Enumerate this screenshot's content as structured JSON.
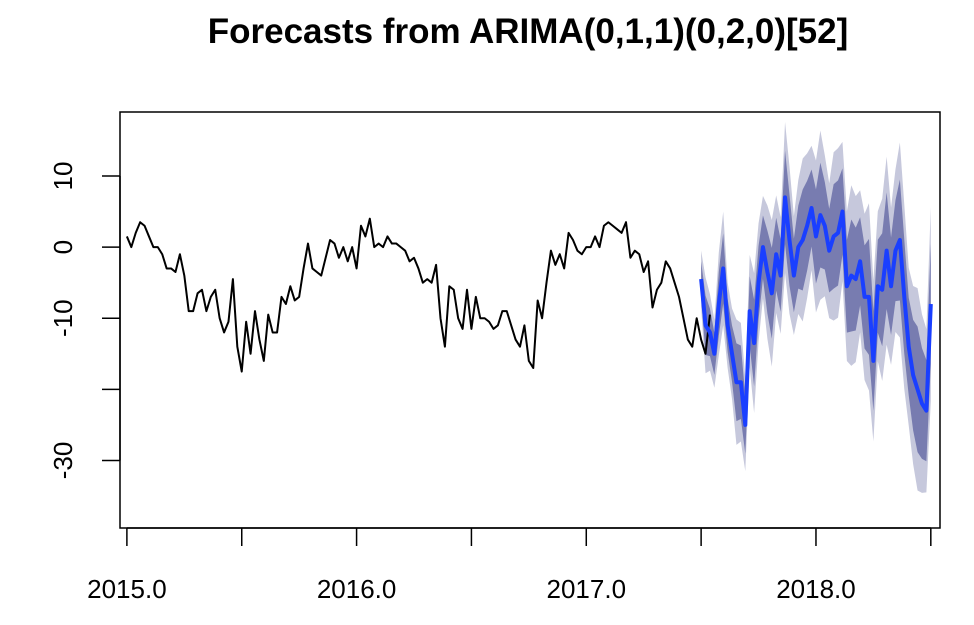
{
  "chart_data": {
    "type": "line",
    "title": "Forecasts from ARIMA(0,1,1)(0,2,0)[52]",
    "xlabel": "",
    "ylabel": "",
    "xlim": [
      2014.97,
      2018.54
    ],
    "ylim": [
      -39.5,
      19
    ],
    "x_ticks": [
      2015.0,
      2015.5,
      2016.0,
      2016.5,
      2017.0,
      2017.5,
      2018.0,
      2018.5
    ],
    "x_tick_labels": [
      "2015.0",
      "",
      "2016.0",
      "",
      "2017.0",
      "",
      "2018.0",
      ""
    ],
    "y_ticks": [
      -30,
      -20,
      -10,
      0,
      10
    ],
    "y_tick_labels": [
      "-30",
      "",
      "-10",
      "0",
      "10"
    ],
    "grid": false,
    "series": [
      {
        "role": "observed",
        "color": "#000000",
        "start": 2015.0,
        "step": 0.01923,
        "values": [
          1.5,
          0,
          2,
          3.5,
          3,
          1.5,
          0,
          0,
          -1,
          -3,
          -3,
          -3.5,
          -1,
          -4,
          -9,
          -9,
          -6.5,
          -6,
          -9,
          -7,
          -6,
          -10,
          -12,
          -10.5,
          -4.5,
          -14,
          -17.5,
          -10.5,
          -15,
          -9,
          -13,
          -16,
          -9.5,
          -12,
          -12,
          -7,
          -8,
          -5.5,
          -7.5,
          -7,
          -3,
          0.5,
          -3,
          -3.5,
          -4,
          -1.5,
          1,
          0.5,
          -1.5,
          0,
          -2,
          0,
          -3,
          3,
          1.5,
          4,
          0,
          0.5,
          0,
          1.5,
          0.5,
          0.5,
          0,
          -0.5,
          -2,
          -1.5,
          -3,
          -5,
          -4.5,
          -5,
          -2.5,
          -10,
          -14,
          -5.5,
          -6,
          -10,
          -11.5,
          -6,
          -11.5,
          -7,
          -10,
          -10,
          -10.5,
          -11.5,
          -11,
          -9,
          -9,
          -11,
          -13,
          -14,
          -11,
          -16,
          -17,
          -7.5,
          -10,
          -5,
          -0.5,
          -2.5,
          -1,
          -3,
          2,
          1,
          -0.5,
          -1,
          0,
          0,
          1.5,
          0,
          3,
          3.5,
          3,
          2.5,
          2,
          3.5,
          -1.5,
          -0.5,
          -1,
          -3.5,
          -2,
          -8.5,
          -6,
          -5,
          -2,
          -3,
          -5,
          -7,
          -10,
          -13,
          -14,
          -10,
          -13,
          -15,
          -9.5
        ]
      },
      {
        "role": "forecast",
        "color": "#1a3fff",
        "start": 2017.5,
        "step": 0.01923,
        "values": [
          -4.5,
          -11,
          -12,
          -15,
          -8,
          -3,
          -11,
          -15,
          -19,
          -19,
          -25,
          -9,
          -13.5,
          -5,
          0,
          -3.5,
          -6.5,
          -1,
          -4,
          7,
          1,
          -4,
          0,
          1,
          3,
          5.5,
          1.5,
          4.5,
          3,
          -0.5,
          1.5,
          2,
          5,
          -5.5,
          -4,
          -4.5,
          -2,
          -7,
          -7,
          -16,
          -5.5,
          -6,
          -0.5,
          -5.5,
          -0.5,
          1,
          -7,
          -14,
          -18,
          -20,
          -22,
          -23,
          -8
        ]
      }
    ],
    "bands": {
      "inner_80_color": "#6a6ea8",
      "outer_95_color": "#c6c8dc",
      "note": "prediction intervals around forecast"
    }
  }
}
